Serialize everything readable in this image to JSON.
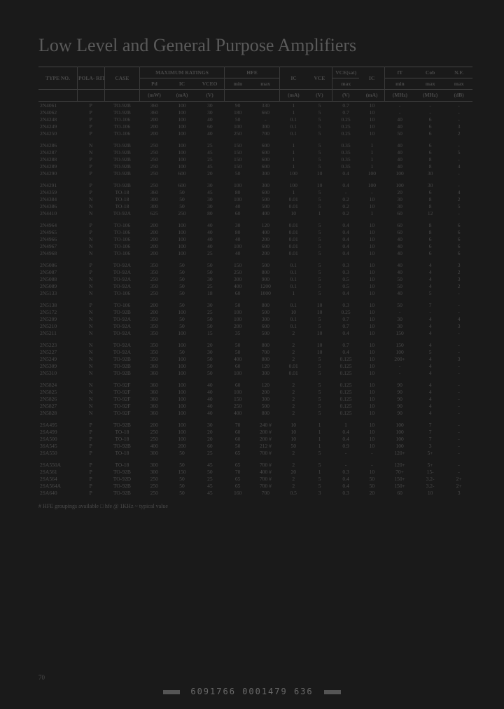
{
  "title": "Low Level and General Purpose Amplifiers",
  "columns": {
    "type": "TYPE NO.",
    "polarity": "POLA- RITY",
    "case": "CASE",
    "max_ratings": "MAXIMUM RATINGS",
    "pd": "Pd",
    "pd_unit": "(mW)",
    "ic": "IC",
    "ic_unit": "(mA)",
    "vceo": "VCEO",
    "vceo_unit": "(V)",
    "hfe": "HFE",
    "hfe_min": "min",
    "hfe_max": "max",
    "ic2": "IC",
    "ic2_unit": "(mA)",
    "vce": "VCE",
    "vce_unit": "(V)",
    "vcesat": "VCE(sat)",
    "vcesat_max": "max",
    "vcesat_unit": "(V)",
    "ic3": "IC",
    "ic3_unit": "(mA)",
    "ft": "fT",
    "ft_min": "min",
    "ft_unit": "(MHz)",
    "cob": "Cob",
    "cob_max": "max",
    "cob_unit": "(MHz)",
    "nf": "N.F.",
    "nf_max": "max",
    "nf_unit": "(dB)"
  },
  "groups": [
    [
      [
        "2N4061",
        "P",
        "TO-92B",
        "360",
        "100",
        "30",
        "90",
        "330",
        "1",
        "5",
        "0.7",
        "10",
        "-",
        "-",
        "-"
      ],
      [
        "2N4062",
        "P",
        "TO-92B",
        "360",
        "100",
        "30",
        "180",
        "660",
        "1",
        "5",
        "0.7",
        "10",
        "-",
        "-",
        "-"
      ],
      [
        "2N4248",
        "P",
        "TO-106",
        "200",
        "100",
        "40",
        "50",
        "-",
        "0.1",
        "5",
        "0.25",
        "10",
        "40",
        "6",
        "-"
      ],
      [
        "2N4249",
        "P",
        "TO-106",
        "200",
        "100",
        "60",
        "100",
        "300",
        "0.1",
        "5",
        "0.25",
        "10",
        "40",
        "6",
        "3"
      ],
      [
        "2N4250",
        "P",
        "TO-106",
        "200",
        "100",
        "40",
        "250",
        "700",
        "0.1",
        "5",
        "0.25",
        "10",
        "50",
        "6",
        "2"
      ]
    ],
    [
      [
        "2N4286",
        "N",
        "TO-92B",
        "250",
        "100",
        "25",
        "150",
        "600",
        "1",
        "5",
        "0.35",
        "1",
        "40",
        "6",
        "-"
      ],
      [
        "2N4287",
        "N",
        "TO-92B",
        "250",
        "100",
        "45",
        "150",
        "600",
        "1",
        "5",
        "0.35",
        "1",
        "40",
        "6",
        "5"
      ],
      [
        "2N4288",
        "P",
        "TO-92B",
        "250",
        "100",
        "25",
        "150",
        "600",
        "1",
        "5",
        "0.35",
        "1",
        "40",
        "8",
        "-"
      ],
      [
        "2N4289",
        "P",
        "TO-92B",
        "250",
        "100",
        "45",
        "150",
        "600",
        "1",
        "5",
        "0.35",
        "1",
        "40",
        "8",
        "4"
      ],
      [
        "2N4290",
        "P",
        "TO-92B",
        "250",
        "600",
        "20",
        "50",
        "300",
        "100",
        "10",
        "0.4",
        "100",
        "100",
        "30",
        "-"
      ]
    ],
    [
      [
        "2N4291",
        "P",
        "TO-92B",
        "250",
        "600",
        "30",
        "100",
        "300",
        "100",
        "10",
        "0.4",
        "100",
        "100",
        "30",
        "-"
      ],
      [
        "2N4359",
        "P",
        "TO-18",
        "360",
        "50",
        "45",
        "80",
        "600",
        "1",
        "5",
        "-",
        "-",
        "20",
        "6",
        "4"
      ],
      [
        "2N4384",
        "N",
        "TO-18",
        "300",
        "50",
        "30",
        "100",
        "500",
        "0.01",
        "5",
        "0.2",
        "10",
        "30",
        "8",
        "2"
      ],
      [
        "2N4386",
        "N",
        "TO-18",
        "300",
        "50",
        "30",
        "40",
        "500",
        "0.01",
        "5",
        "0.2",
        "10",
        "30",
        "8",
        "5"
      ],
      [
        "2N4410",
        "N",
        "TO-92A",
        "625",
        "250",
        "80",
        "60",
        "400",
        "10",
        "1",
        "0.2",
        "1",
        "60",
        "12",
        "-"
      ]
    ],
    [
      [
        "2N4964",
        "P",
        "TO-106",
        "200",
        "100",
        "40",
        "30",
        "120",
        "0.01",
        "5",
        "0.4",
        "10",
        "60",
        "8",
        "6"
      ],
      [
        "2N4965",
        "P",
        "TO-106",
        "200",
        "100",
        "40",
        "80",
        "400",
        "0.01",
        "5",
        "0.4",
        "10",
        "60",
        "8",
        "6"
      ],
      [
        "2N4966",
        "N",
        "TO-106",
        "200",
        "100",
        "40",
        "40",
        "200",
        "0.01",
        "5",
        "0.4",
        "10",
        "40",
        "6",
        "6"
      ],
      [
        "2N4967",
        "N",
        "TO-106",
        "200",
        "100",
        "40",
        "100",
        "600",
        "0.01",
        "5",
        "0.4",
        "10",
        "40",
        "6",
        "6"
      ],
      [
        "2N4968",
        "N",
        "TO-106",
        "200",
        "100",
        "25",
        "40",
        "200",
        "0.01",
        "5",
        "0.4",
        "10",
        "40",
        "6",
        "6"
      ]
    ],
    [
      [
        "2N5086",
        "P",
        "TO-92A",
        "350",
        "50",
        "50",
        "150",
        "500",
        "0.1",
        "5",
        "0.3",
        "10",
        "40",
        "4",
        "3"
      ],
      [
        "2N5087",
        "P",
        "TO-92A",
        "350",
        "50",
        "50",
        "250",
        "800",
        "0.1",
        "5",
        "0.3",
        "10",
        "40",
        "4",
        "2"
      ],
      [
        "2N5088",
        "N",
        "TO-92A",
        "250",
        "50",
        "30",
        "300",
        "900",
        "0.1",
        "5",
        "0.5",
        "10",
        "50",
        "4",
        "3"
      ],
      [
        "2N5089",
        "N",
        "TO-92A",
        "350",
        "50",
        "25",
        "400",
        "1200",
        "0.1",
        "5",
        "0.5",
        "10",
        "50",
        "4",
        "2"
      ],
      [
        "2N5133",
        "N",
        "TO-106",
        "250",
        "50",
        "18",
        "60",
        "1000",
        "1",
        "5",
        "0.4",
        "10",
        "40",
        "5",
        "-"
      ]
    ],
    [
      [
        "2N5138",
        "P",
        "TO-106",
        "200",
        "50",
        "30",
        "50",
        "800",
        "0.1",
        "10",
        "0.3",
        "10",
        "50",
        "7",
        "-"
      ],
      [
        "2N5172",
        "N",
        "TO-92B",
        "200",
        "100",
        "25",
        "100",
        "500",
        "10",
        "10",
        "0.25",
        "10",
        "-",
        "-",
        "-"
      ],
      [
        "2N5209",
        "N",
        "TO-92A",
        "350",
        "50",
        "50",
        "100",
        "300",
        "0.1",
        "5",
        "0.7",
        "10",
        "30",
        "4",
        "4"
      ],
      [
        "2N5210",
        "N",
        "TO-92A",
        "350",
        "50",
        "50",
        "200",
        "600",
        "0.1",
        "5",
        "0.7",
        "10",
        "30",
        "4",
        "3"
      ],
      [
        "2N5211",
        "N",
        "TO-92A",
        "350",
        "100",
        "15",
        "35",
        "500",
        "2",
        "10",
        "0.4",
        "10",
        "150",
        "4",
        "-"
      ]
    ],
    [
      [
        "2N5223",
        "N",
        "TO-92A",
        "350",
        "100",
        "20",
        "50",
        "800",
        "2",
        "10",
        "0.7",
        "10",
        "150",
        "4",
        "-"
      ],
      [
        "2N5227",
        "N",
        "TO-92A",
        "350",
        "50",
        "30",
        "50",
        "700",
        "2",
        "10",
        "0.4",
        "10",
        "100",
        "5",
        "-"
      ],
      [
        "2N5249",
        "N",
        "TO-92B",
        "350",
        "100",
        "50",
        "400",
        "800",
        "2",
        "5",
        "0.125",
        "10",
        "200+",
        "4",
        "3"
      ],
      [
        "2N5309",
        "N",
        "TO-92B",
        "360",
        "100",
        "50",
        "60",
        "120",
        "0.01",
        "5",
        "0.125",
        "10",
        "-",
        "4",
        "-"
      ],
      [
        "2N5310",
        "N",
        "TO-92B",
        "360",
        "100",
        "50",
        "100",
        "300",
        "0.01",
        "5",
        "0.125",
        "10",
        "-",
        "4",
        "-"
      ]
    ],
    [
      [
        "2N5824",
        "N",
        "TO-92F",
        "360",
        "100",
        "40",
        "60",
        "120",
        "2",
        "5",
        "0.125",
        "10",
        "90",
        "4",
        "-"
      ],
      [
        "2N5825",
        "N",
        "TO-92F",
        "360",
        "100",
        "40",
        "100",
        "200",
        "2",
        "5",
        "0.125",
        "10",
        "90",
        "4",
        "-"
      ],
      [
        "2N5826",
        "N",
        "TO-92F",
        "360",
        "100",
        "40",
        "150",
        "300",
        "2",
        "5",
        "0.125",
        "10",
        "90",
        "4",
        "-"
      ],
      [
        "2N5827",
        "N",
        "TO-92F",
        "360",
        "100",
        "40",
        "250",
        "500",
        "2",
        "5",
        "0.125",
        "10",
        "90",
        "4",
        "-"
      ],
      [
        "2N5828",
        "N",
        "TO-92F",
        "360",
        "100",
        "40",
        "400",
        "800",
        "2",
        "5",
        "0.125",
        "10",
        "90",
        "4",
        "-"
      ]
    ],
    [
      [
        "2SA495",
        "P",
        "TO-92B",
        "200",
        "100",
        "30",
        "70",
        "240 #",
        "10",
        "1",
        "1",
        "10",
        "100",
        "7",
        "-"
      ],
      [
        "2SA499",
        "P",
        "TO-18",
        "250",
        "100",
        "20",
        "60",
        "200 #",
        "10",
        "1",
        "0.4",
        "10",
        "100",
        "7",
        "-"
      ],
      [
        "2SA500",
        "P",
        "TO-18",
        "250",
        "100",
        "20",
        "60",
        "200 #",
        "10",
        "1",
        "0.4",
        "10",
        "100",
        "7",
        "-"
      ],
      [
        "3SA545",
        "P",
        "TO-92B",
        "400",
        "200",
        "60",
        "50",
        "212 #",
        "50",
        "1",
        "0.9",
        "10",
        "100",
        "3",
        "-"
      ],
      [
        "2SA550",
        "P",
        "TO-18",
        "300",
        "50",
        "25",
        "65",
        "700 #",
        "2",
        "5",
        "-",
        "-",
        "120+",
        "5+",
        "-"
      ]
    ],
    [
      [
        "2SA550A",
        "P",
        "TO-18",
        "300",
        "50",
        "45",
        "65",
        "700 #",
        "2",
        "5",
        "-",
        "-",
        "120+",
        "5+",
        "-"
      ],
      [
        "2SA561",
        "P",
        "TO-92B",
        "300",
        "150",
        "50",
        "70",
        "400 #",
        "20",
        "1",
        "0.3",
        "10",
        "70+",
        "15-",
        "-"
      ],
      [
        "2SA564",
        "P",
        "TO-92D",
        "250",
        "50",
        "25",
        "65",
        "700 #",
        "2",
        "5",
        "0.4",
        "50",
        "150+",
        "3.2-",
        "2+"
      ],
      [
        "2SA564A",
        "P",
        "TO-92B",
        "250",
        "50",
        "45",
        "65",
        "700 #",
        "2",
        "5",
        "0.4",
        "50",
        "150+",
        "3.2-",
        "2+"
      ],
      [
        "2SA640",
        "P",
        "TO-92B",
        "250",
        "50",
        "45",
        "160",
        "700",
        "0.5",
        "3",
        "0.3",
        "20",
        "60",
        "10",
        "3"
      ]
    ]
  ],
  "footnotes": "# HFE groupings available    □ hfe @ 1KHz    ~ typical value",
  "pagenum": "70",
  "footer_code": "6091766 0001479 636"
}
